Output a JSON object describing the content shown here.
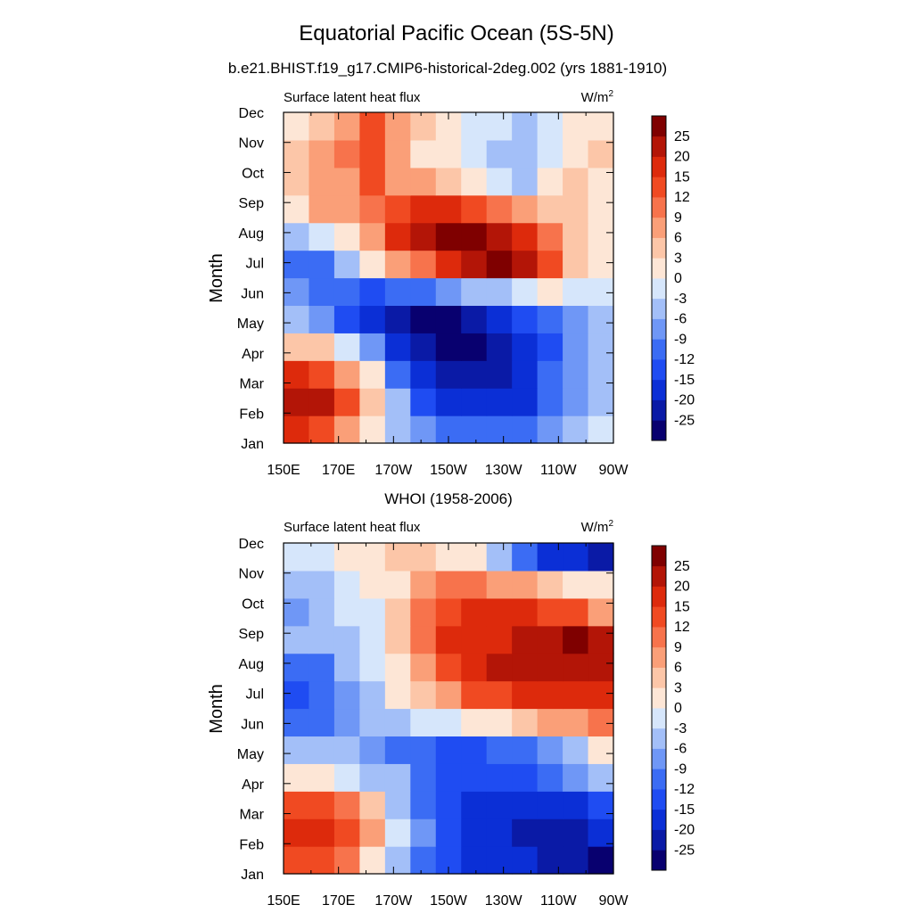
{
  "title": "Equatorial Pacific Ocean (5S-5N)",
  "chart_data": [
    {
      "type": "heatmap",
      "title": "b.e21.BHIST.f19_g17.CMIP6-historical-2deg.002 (yrs 1881-1910)",
      "left_label": "Surface latent heat flux",
      "right_label": "W/m",
      "right_label_sup": "2",
      "ylabel": "Month",
      "xlabel": "",
      "x_ticks": [
        "150E",
        "170E",
        "170W",
        "150W",
        "130W",
        "110W",
        "90W"
      ],
      "y_ticks": [
        "Jan",
        "Feb",
        "Mar",
        "Apr",
        "May",
        "Jun",
        "Jul",
        "Aug",
        "Sep",
        "Oct",
        "Nov",
        "Dec"
      ],
      "x_values": [
        150,
        160,
        170,
        180,
        190,
        200,
        210,
        220,
        230,
        240,
        250,
        260,
        270
      ],
      "values": [
        [
          18,
          14,
          8,
          2,
          -4,
          -8,
          -10,
          -12,
          -12,
          -10,
          -8,
          -5,
          -3
        ],
        [
          23,
          20,
          12,
          3,
          -6,
          -14,
          -18,
          -20,
          -20,
          -17,
          -12,
          -8,
          -5
        ],
        [
          16,
          14,
          8,
          0,
          -10,
          -18,
          -22,
          -24,
          -22,
          -18,
          -12,
          -8,
          -4
        ],
        [
          4,
          3,
          -2,
          -8,
          -16,
          -22,
          -26,
          -26,
          -23,
          -19,
          -13,
          -9,
          -5
        ],
        [
          -5,
          -8,
          -14,
          -19,
          -24,
          -27,
          -26,
          -23,
          -19,
          -15,
          -11,
          -8,
          -5
        ],
        [
          -8,
          -10,
          -12,
          -14,
          -12,
          -10,
          -8,
          -6,
          -4,
          -2,
          0,
          -2,
          -3
        ],
        [
          -12,
          -10,
          -6,
          0,
          6,
          10,
          16,
          22,
          26,
          22,
          14,
          4,
          0
        ],
        [
          -4,
          -2,
          2,
          8,
          16,
          22,
          26,
          26,
          22,
          16,
          10,
          4,
          2
        ],
        [
          2,
          6,
          8,
          10,
          14,
          16,
          16,
          14,
          10,
          6,
          4,
          3,
          2
        ],
        [
          3,
          6,
          8,
          12,
          8,
          6,
          4,
          0,
          -3,
          -6,
          0,
          3,
          2
        ],
        [
          4,
          6,
          10,
          14,
          6,
          2,
          0,
          -2,
          -4,
          -6,
          -2,
          2,
          3
        ],
        [
          0,
          3,
          6,
          14,
          8,
          3,
          0,
          -2,
          -3,
          -4,
          -2,
          0,
          2
        ]
      ]
    },
    {
      "type": "heatmap",
      "title": "WHOI (1958-2006)",
      "left_label": "Surface latent heat flux",
      "right_label": "W/m",
      "right_label_sup": "2",
      "ylabel": "Month",
      "xlabel": "",
      "x_ticks": [
        "150E",
        "170E",
        "170W",
        "150W",
        "130W",
        "110W",
        "90W"
      ],
      "y_ticks": [
        "Jan",
        "Feb",
        "Mar",
        "Apr",
        "May",
        "Jun",
        "Jul",
        "Aug",
        "Sep",
        "Oct",
        "Nov",
        "Dec"
      ],
      "x_values": [
        150,
        160,
        170,
        180,
        190,
        200,
        210,
        220,
        230,
        240,
        250,
        260,
        270
      ],
      "values": [
        [
          12,
          14,
          10,
          2,
          -4,
          -10,
          -14,
          -16,
          -18,
          -20,
          -22,
          -24,
          -26
        ],
        [
          16,
          16,
          14,
          6,
          -2,
          -8,
          -14,
          -18,
          -20,
          -22,
          -22,
          -22,
          -20
        ],
        [
          14,
          12,
          10,
          3,
          -4,
          -10,
          -14,
          -16,
          -18,
          -18,
          -16,
          -16,
          -14
        ],
        [
          2,
          0,
          -2,
          -4,
          -6,
          -10,
          -14,
          -14,
          -14,
          -14,
          -12,
          -8,
          -6
        ],
        [
          -6,
          -6,
          -6,
          -8,
          -10,
          -12,
          -14,
          -14,
          -12,
          -10,
          -8,
          -4,
          0
        ],
        [
          -12,
          -10,
          -8,
          -6,
          -4,
          -2,
          -2,
          0,
          2,
          4,
          6,
          8,
          10
        ],
        [
          -14,
          -12,
          -8,
          -4,
          0,
          4,
          8,
          12,
          14,
          16,
          18,
          18,
          16
        ],
        [
          -10,
          -12,
          -6,
          -2,
          2,
          8,
          14,
          18,
          20,
          20,
          22,
          22,
          20
        ],
        [
          -6,
          -6,
          -4,
          -2,
          4,
          10,
          16,
          18,
          18,
          20,
          22,
          26,
          20
        ],
        [
          -8,
          -6,
          -3,
          -1,
          4,
          10,
          14,
          16,
          18,
          16,
          14,
          12,
          8
        ],
        [
          -4,
          -4,
          -2,
          0,
          2,
          6,
          10,
          10,
          8,
          6,
          4,
          2,
          0
        ],
        [
          -2,
          -1,
          0,
          2,
          3,
          4,
          2,
          0,
          -4,
          -10,
          -16,
          -20,
          -24
        ]
      ]
    }
  ],
  "colorbar": {
    "levels": [
      -25,
      -20,
      -15,
      -12,
      -9,
      -6,
      -3,
      0,
      3,
      6,
      9,
      12,
      15,
      20,
      25
    ],
    "labels": [
      "25",
      "20",
      "15",
      "12",
      "9",
      "6",
      "3",
      "0",
      "-3",
      "-6",
      "-9",
      "-12",
      "-15",
      "-20",
      "-25"
    ],
    "colors": [
      "#08006f",
      "#0a1aa6",
      "#0b2fd6",
      "#1f4cf2",
      "#3b6cf4",
      "#6f97f6",
      "#a3bff8",
      "#d6e6fb",
      "#fde6d6",
      "#fcc6a8",
      "#fa9f78",
      "#f7734c",
      "#f04a22",
      "#dd2a0c",
      "#b31507",
      "#7f0000"
    ]
  }
}
